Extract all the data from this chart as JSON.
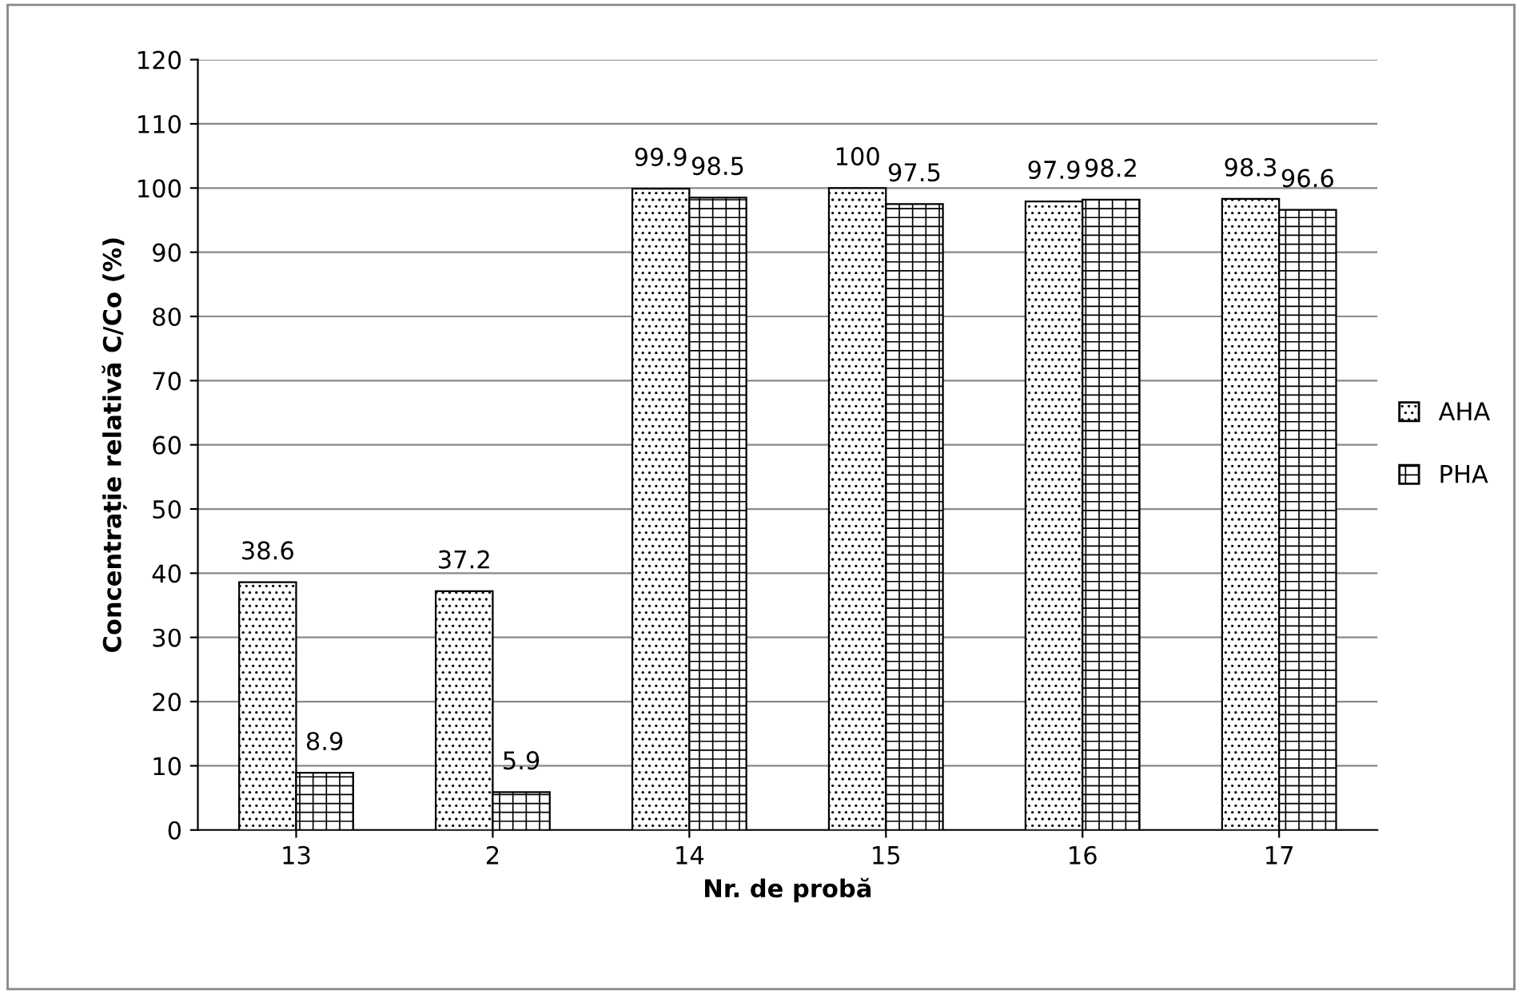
{
  "chart_data": {
    "type": "bar",
    "xlabel": "Nr. de probă",
    "ylabel": "Concentrație relativă C/Co (%)",
    "categories": [
      "13",
      "2",
      "14",
      "15",
      "16",
      "17"
    ],
    "series": [
      {
        "name": "AHA",
        "color": "#000000",
        "values": [
          38.6,
          37.2,
          99.9,
          100,
          97.9,
          98.3
        ]
      },
      {
        "name": "PHA",
        "color": "#000000",
        "values": [
          8.9,
          5.9,
          98.5,
          97.5,
          98.2,
          96.6
        ]
      }
    ],
    "ylim": [
      0,
      120
    ],
    "yticks": [
      0,
      10,
      20,
      30,
      40,
      50,
      60,
      70,
      80,
      90,
      100,
      110,
      120
    ],
    "grid": "y",
    "legend": "right",
    "data_labels": true
  }
}
